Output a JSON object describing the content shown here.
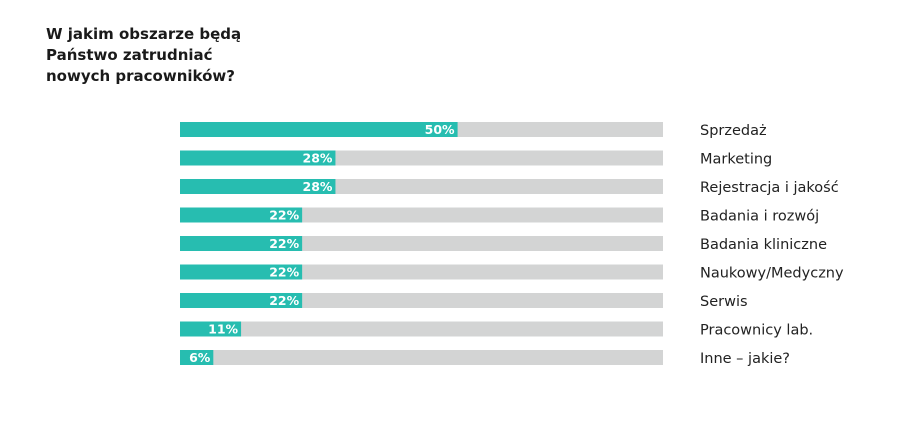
{
  "header": {
    "title_lines": [
      "W jakim obszarze będą",
      "Państwo zatrudniać",
      "nowych pracowników?"
    ]
  },
  "chart_data": {
    "type": "bar",
    "orientation": "horizontal",
    "title": "W jakim obszarze będą Państwo zatrudniać nowych pracowników?",
    "categories": [
      "Sprzedaż",
      "Marketing",
      "Rejestracja i jakość",
      "Badania i rozwój",
      "Badania kliniczne",
      "Naukowy/Medyczny",
      "Serwis",
      "Pracownicy lab.",
      "Inne – jakie?"
    ],
    "values": [
      50,
      28,
      28,
      22,
      22,
      22,
      22,
      11,
      6
    ],
    "value_labels": [
      "50%",
      "28%",
      "28%",
      "22%",
      "22%",
      "22%",
      "22%",
      "11%",
      "6%"
    ],
    "xlim": [
      0,
      87
    ],
    "unit": "%",
    "grid": false,
    "legend": "none",
    "colors": {
      "fill": "#27bdb0",
      "track": "#d3d4d4",
      "value_text": "#ffffff",
      "label_text": "#222222"
    }
  }
}
